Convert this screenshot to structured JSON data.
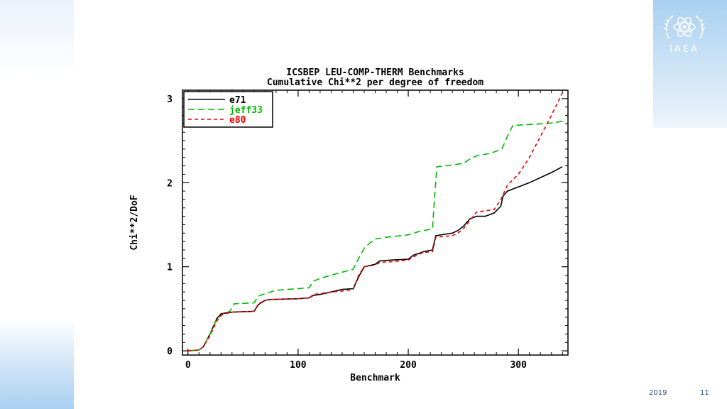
{
  "slide": {
    "logo_text": "IAEA",
    "footer_date": "2019",
    "page_number": "11"
  },
  "chart_data": {
    "type": "line",
    "title": "ICSBEP LEU-COMP-THERM Benchmarks",
    "subtitle": "Cumulative Chi**2 per degree of freedom",
    "xlabel": "Benchmark",
    "ylabel": "Chi**2/DoF",
    "xlim": [
      -5,
      345
    ],
    "ylim": [
      -0.05,
      3.1
    ],
    "x_ticks": [
      0,
      100,
      200,
      300
    ],
    "y_ticks": [
      0,
      1,
      2,
      3
    ],
    "x_tick_labels": [
      "0",
      "100",
      "200",
      "300"
    ],
    "y_tick_labels": [
      "0",
      "1",
      "2",
      "3"
    ],
    "grid": false,
    "legend_position": "top-left",
    "series": [
      {
        "name": "e71",
        "color": "#000000",
        "dash": "solid",
        "x": [
          0,
          10,
          14,
          20,
          26,
          30,
          34,
          40,
          60,
          64,
          70,
          74,
          100,
          110,
          114,
          120,
          130,
          140,
          150,
          155,
          160,
          170,
          174,
          185,
          200,
          205,
          210,
          214,
          222,
          225,
          240,
          245,
          250,
          256,
          262,
          270,
          278,
          284,
          286,
          290,
          300,
          310,
          320,
          330,
          340
        ],
        "y": [
          0.0,
          0.01,
          0.05,
          0.2,
          0.38,
          0.44,
          0.45,
          0.46,
          0.47,
          0.55,
          0.6,
          0.61,
          0.62,
          0.63,
          0.66,
          0.67,
          0.7,
          0.73,
          0.74,
          0.88,
          1.0,
          1.03,
          1.07,
          1.08,
          1.09,
          1.14,
          1.16,
          1.18,
          1.2,
          1.37,
          1.4,
          1.43,
          1.48,
          1.57,
          1.6,
          1.6,
          1.64,
          1.72,
          1.84,
          1.9,
          1.95,
          2.0,
          2.06,
          2.12,
          2.19
        ]
      },
      {
        "name": "jeff33",
        "color": "#00bb00",
        "dash": "long",
        "x": [
          0,
          10,
          14,
          20,
          26,
          32,
          38,
          42,
          60,
          64,
          70,
          80,
          110,
          114,
          120,
          130,
          150,
          155,
          160,
          165,
          170,
          180,
          200,
          210,
          222,
          224,
          226,
          240,
          250,
          256,
          262,
          275,
          285,
          290,
          295,
          320,
          330,
          340
        ],
        "y": [
          0.0,
          0.01,
          0.05,
          0.2,
          0.38,
          0.44,
          0.47,
          0.56,
          0.57,
          0.65,
          0.68,
          0.72,
          0.75,
          0.83,
          0.86,
          0.9,
          0.97,
          1.1,
          1.22,
          1.28,
          1.33,
          1.35,
          1.38,
          1.42,
          1.45,
          1.85,
          2.19,
          2.21,
          2.23,
          2.28,
          2.32,
          2.35,
          2.4,
          2.55,
          2.68,
          2.7,
          2.71,
          2.73
        ]
      },
      {
        "name": "e80",
        "color": "#ee0000",
        "dash": "short",
        "x": [
          0,
          10,
          14,
          20,
          26,
          30,
          34,
          40,
          60,
          64,
          70,
          74,
          100,
          110,
          114,
          120,
          130,
          140,
          150,
          155,
          160,
          170,
          174,
          185,
          200,
          205,
          210,
          214,
          222,
          225,
          240,
          245,
          250,
          256,
          262,
          278,
          284,
          290,
          300,
          310,
          320,
          330,
          340
        ],
        "y": [
          0.0,
          0.01,
          0.05,
          0.18,
          0.35,
          0.42,
          0.44,
          0.46,
          0.47,
          0.56,
          0.6,
          0.61,
          0.62,
          0.63,
          0.67,
          0.68,
          0.7,
          0.71,
          0.73,
          0.9,
          1.0,
          1.02,
          1.05,
          1.06,
          1.08,
          1.12,
          1.15,
          1.17,
          1.18,
          1.35,
          1.37,
          1.4,
          1.45,
          1.55,
          1.65,
          1.68,
          1.8,
          1.97,
          2.1,
          2.3,
          2.55,
          2.8,
          3.07
        ]
      }
    ]
  }
}
